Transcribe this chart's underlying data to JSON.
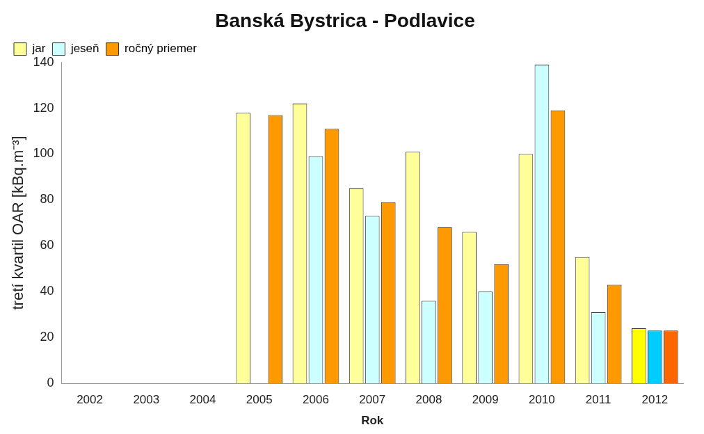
{
  "chart_data": {
    "type": "bar",
    "title": "Banská Bystrica - Podlavice",
    "xlabel": "Rok",
    "ylabel": "tretí kvartil OAR [kBq.m⁻³]",
    "categories": [
      "2002",
      "2003",
      "2004",
      "2005",
      "2006",
      "2007",
      "2008",
      "2009",
      "2010",
      "2011",
      "2012"
    ],
    "series": [
      {
        "name": "jar",
        "color": "#ffff99",
        "colors": [
          "#ffff99",
          "#ffff99",
          "#ffff99",
          "#ffff99",
          "#ffff99",
          "#ffff99",
          "#ffff99",
          "#ffff99",
          "#ffff99",
          "#ffff99",
          "#ffff00"
        ],
        "values": [
          null,
          null,
          null,
          118,
          122,
          85,
          101,
          66,
          100,
          55,
          24
        ]
      },
      {
        "name": "jeseň",
        "color": "#ccffff",
        "colors": [
          "#ccffff",
          "#ccffff",
          "#ccffff",
          "#ccffff",
          "#ccffff",
          "#ccffff",
          "#ccffff",
          "#ccffff",
          "#ccffff",
          "#ccffff",
          "#00ccff"
        ],
        "values": [
          null,
          null,
          null,
          null,
          99,
          73,
          36,
          40,
          139,
          31,
          23
        ]
      },
      {
        "name": "ročný priemer",
        "color": "#ff9900",
        "colors": [
          "#ff9900",
          "#ff9900",
          "#ff9900",
          "#ff9900",
          "#ff9900",
          "#ff9900",
          "#ff9900",
          "#ff9900",
          "#ff9900",
          "#ff9900",
          "#ff6600"
        ],
        "values": [
          null,
          null,
          null,
          117,
          111,
          79,
          68,
          52,
          119,
          43,
          23
        ]
      }
    ],
    "ylim": [
      0,
      140
    ],
    "yticks": [
      0,
      20,
      40,
      60,
      80,
      100,
      120,
      140
    ],
    "grid": false,
    "legend": "top left"
  }
}
